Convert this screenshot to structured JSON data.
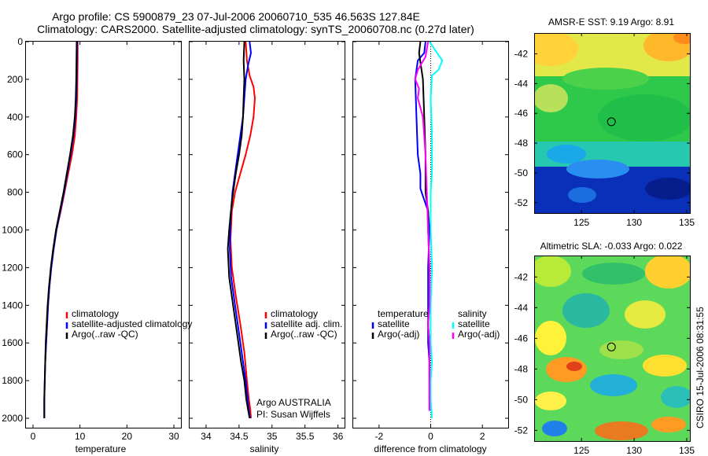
{
  "header": {
    "title_line1": "Argo profile: CS 5900879_23 07-Jul-2006 20060710_535 46.563S 127.84E",
    "title_line2": "Climatology: CARS2000. Satellite-adjusted climatology: synTS_20060708.nc (0.27d later)"
  },
  "credit": {
    "agency": "Argo AUSTRALIA",
    "pi": "PI: Susan Wijffels"
  },
  "side_stamp": "CSIRO 15-Jul-2006 08:31:55",
  "colors": {
    "red": "#ff0000",
    "blue": "#0000ff",
    "black": "#000000",
    "cyan": "#00ffff",
    "magenta": "#ff00ff"
  },
  "chart_data": [
    {
      "type": "line",
      "xlabel": "temperature",
      "ylabel": "",
      "xlim": [
        -1.5,
        31.5
      ],
      "ylim": [
        2050,
        0
      ],
      "xticks": [
        0,
        10,
        20,
        30
      ],
      "xtick_labels": [
        "0",
        "10",
        "20",
        "30"
      ],
      "yticks": [
        0,
        200,
        400,
        600,
        800,
        1000,
        1200,
        1400,
        1600,
        1800,
        2000
      ],
      "ytick_labels": [
        "0",
        "200",
        "400",
        "600",
        "800",
        "1000",
        "1200",
        "1400",
        "1600",
        "1800",
        "2000"
      ],
      "legend": [
        "climatology",
        "satellite-adjusted climatology",
        "Argo(..raw -QC)"
      ],
      "legend_position": "middle-right",
      "series": [
        {
          "name": "climatology",
          "color": "red",
          "x": [
            9.5,
            9.5,
            9.45,
            9.4,
            9.2,
            8.9,
            8.3,
            7.5,
            6.7,
            5.9,
            5.0,
            4.4,
            3.9,
            3.5,
            3.2,
            3.0,
            2.8,
            2.6
          ],
          "y": [
            0,
            100,
            200,
            300,
            400,
            500,
            600,
            700,
            800,
            900,
            1000,
            1100,
            1200,
            1300,
            1400,
            1500,
            1600,
            1700
          ]
        },
        {
          "name": "satellite-adjusted climatology",
          "color": "blue",
          "x": [
            9.4,
            9.35,
            9.3,
            9.2,
            9.0,
            8.6,
            8.0,
            7.3,
            6.6,
            5.8,
            5.0,
            4.4,
            3.9,
            3.5,
            3.2,
            3.0,
            2.8,
            2.6,
            2.5,
            2.4,
            2.4
          ],
          "y": [
            0,
            100,
            200,
            300,
            400,
            500,
            600,
            700,
            800,
            900,
            1000,
            1100,
            1200,
            1300,
            1400,
            1500,
            1600,
            1700,
            1800,
            1900,
            2000
          ]
        },
        {
          "name": "Argo(..raw -QC)",
          "color": "black",
          "x": [
            9.3,
            9.25,
            9.2,
            9.1,
            8.9,
            8.5,
            7.9,
            7.2,
            6.5,
            5.7,
            4.9,
            4.3,
            3.8,
            3.4,
            3.1,
            2.9,
            2.7,
            2.6,
            2.5,
            2.4,
            2.4
          ],
          "y": [
            0,
            100,
            200,
            300,
            400,
            500,
            600,
            700,
            800,
            900,
            1000,
            1100,
            1200,
            1300,
            1400,
            1500,
            1600,
            1700,
            1800,
            1900,
            2000
          ]
        }
      ]
    },
    {
      "type": "line",
      "xlabel": "salinity",
      "xlim": [
        33.75,
        36.1
      ],
      "ylim": [
        2050,
        0
      ],
      "xticks": [
        34,
        34.5,
        35,
        35.5,
        36
      ],
      "xtick_labels": [
        "34",
        "34.5",
        "35",
        "35.5",
        "36"
      ],
      "yticks": [
        0,
        200,
        400,
        600,
        800,
        1000,
        1200,
        1400,
        1600,
        1800,
        2000
      ],
      "legend": [
        "climatology",
        "satellite adj. clim.",
        "Argo(..raw -QC)"
      ],
      "legend_position": "middle-right",
      "series": [
        {
          "name": "climatology",
          "color": "red",
          "x": [
            34.6,
            34.62,
            34.66,
            34.72,
            34.74,
            34.72,
            34.67,
            34.6,
            34.52,
            34.44,
            34.39,
            34.37,
            34.39,
            34.45,
            34.52,
            34.58,
            34.62,
            34.65,
            34.67,
            34.68
          ],
          "y": [
            0,
            100,
            180,
            240,
            300,
            400,
            500,
            600,
            700,
            800,
            900,
            1050,
            1200,
            1350,
            1500,
            1650,
            1800,
            1900,
            1950,
            2000
          ]
        },
        {
          "name": "satellite adj. clim.",
          "color": "blue",
          "x": [
            34.66,
            34.68,
            34.64,
            34.6,
            34.58,
            34.56,
            34.52,
            34.46,
            34.4,
            34.37,
            34.36,
            34.38,
            34.44,
            34.5,
            34.56,
            34.6,
            34.63,
            34.65,
            34.67
          ],
          "y": [
            0,
            60,
            120,
            200,
            300,
            400,
            500,
            650,
            800,
            950,
            1100,
            1250,
            1400,
            1550,
            1700,
            1800,
            1900,
            1960,
            2000
          ]
        },
        {
          "name": "Argo(..raw -QC)",
          "color": "black",
          "x": [
            34.58,
            34.57,
            34.58,
            34.57,
            34.56,
            34.54,
            34.5,
            34.45,
            34.39,
            34.35,
            34.33,
            34.35,
            34.41,
            34.47,
            34.53,
            34.58,
            34.61,
            34.64,
            34.66
          ],
          "y": [
            0,
            100,
            200,
            300,
            400,
            500,
            600,
            700,
            850,
            1000,
            1100,
            1250,
            1400,
            1550,
            1700,
            1800,
            1900,
            1960,
            2000
          ]
        }
      ]
    },
    {
      "type": "line",
      "xlabel": "difference from climatology",
      "xlim": [
        -3,
        3
      ],
      "ylim": [
        2050,
        0
      ],
      "xticks": [
        -2,
        0,
        2
      ],
      "xtick_labels": [
        "-2",
        "0",
        "2"
      ],
      "yticks": [
        0,
        200,
        400,
        600,
        800,
        1000,
        1200,
        1400,
        1600,
        1800,
        2000
      ],
      "zero_line": true,
      "legend_groups": [
        {
          "heading": "temperature",
          "entries": [
            "satellite",
            "Argo(-adj)"
          ]
        },
        {
          "heading": "salinity",
          "entries": [
            "satellite",
            "Argo(-adj)"
          ]
        }
      ],
      "legend_position": "lower-middle",
      "series": [
        {
          "name": "temperature satellite",
          "color": "blue",
          "x": [
            -0.2,
            -0.25,
            -0.5,
            -0.6,
            -0.55,
            -0.5,
            -0.4,
            -0.4,
            -0.3,
            -0.1,
            -0.05,
            -0.1,
            -0.1,
            -0.1,
            -0.05,
            -0.05,
            -0.05,
            -0.05
          ],
          "y": [
            0,
            60,
            100,
            200,
            400,
            600,
            700,
            780,
            820,
            900,
            1000,
            1200,
            1400,
            1600,
            1700,
            1800,
            1900,
            1960
          ]
        },
        {
          "name": "temperature Argo(-adj)",
          "color": "black",
          "x": [
            -0.4,
            -0.45,
            -0.3,
            -0.25,
            -0.2,
            -0.2,
            -0.15,
            -0.1,
            -0.1,
            -0.05,
            -0.05,
            -0.05,
            -0.1,
            -0.05,
            -0.05,
            -0.05,
            -0.05
          ],
          "y": [
            0,
            60,
            200,
            400,
            600,
            800,
            850,
            900,
            1000,
            1200,
            1300,
            1400,
            1500,
            1600,
            1700,
            1800,
            1900
          ]
        },
        {
          "name": "salinity satellite",
          "color": "cyan",
          "x": [
            -0.05,
            0.15,
            0.45,
            0.3,
            0.05,
            0.0,
            0.05,
            0.05,
            0.0,
            0.0,
            0.05,
            0.0,
            0.0,
            0.05,
            0.0,
            0.0,
            0.05
          ],
          "y": [
            0,
            40,
            100,
            150,
            180,
            300,
            500,
            700,
            800,
            1000,
            1200,
            1400,
            1600,
            1700,
            1800,
            1900,
            2000
          ]
        },
        {
          "name": "salinity Argo(-adj)",
          "color": "magenta",
          "x": [
            -0.1,
            -0.2,
            -0.5,
            -0.6,
            -0.45,
            -0.5,
            -0.3,
            -0.2,
            -0.15,
            -0.1,
            -0.05,
            -0.05,
            -0.1,
            -0.05,
            -0.05,
            -0.05,
            -0.05,
            -0.05
          ],
          "y": [
            0,
            80,
            150,
            200,
            250,
            300,
            400,
            600,
            800,
            1000,
            1200,
            1400,
            1500,
            1600,
            1700,
            1800,
            1900,
            1960
          ]
        }
      ]
    },
    {
      "type": "heatmap",
      "title": "AMSR-E SST: 9.19 Argo: 8.91",
      "xlim": [
        120.5,
        135.3
      ],
      "ylim": [
        -52.7,
        -40.6
      ],
      "xticks": [
        125,
        130,
        135
      ],
      "xtick_labels": [
        "125",
        "130",
        "135"
      ],
      "yticks": [
        -42,
        -44,
        -46,
        -48,
        -50,
        -52
      ],
      "ytick_labels": [
        "-42",
        "-44",
        "-46",
        "-48",
        "-50",
        "-52"
      ],
      "marker": {
        "lon": 127.84,
        "lat": -46.563
      }
    },
    {
      "type": "heatmap",
      "title": "Altimetric SLA: -0.033 Argo: 0.022",
      "xlim": [
        120.5,
        135.3
      ],
      "ylim": [
        -52.7,
        -40.6
      ],
      "xticks": [
        125,
        130,
        135
      ],
      "xtick_labels": [
        "125",
        "130",
        "135"
      ],
      "yticks": [
        -42,
        -44,
        -46,
        -48,
        -50,
        -52
      ],
      "ytick_labels": [
        "-42",
        "-44",
        "-46",
        "-48",
        "-50",
        "-52"
      ],
      "marker": {
        "lon": 127.84,
        "lat": -46.563
      }
    }
  ]
}
